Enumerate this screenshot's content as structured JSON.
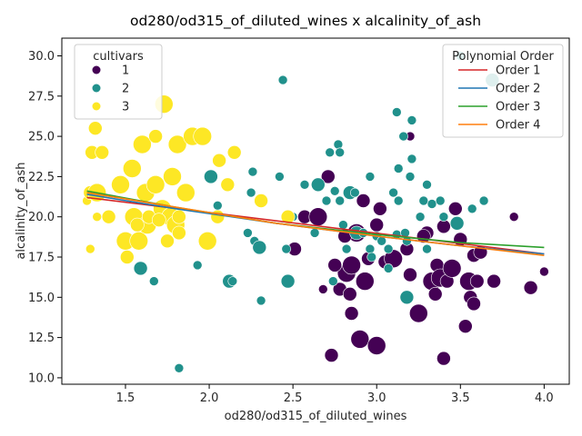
{
  "chart_data": {
    "type": "scatter",
    "title": "od280/od315_of_diluted_wines x alcalinity_of_ash",
    "xlabel": "od280/od315_of_diluted_wines",
    "ylabel": "alcalinity_of_ash",
    "xlim": [
      1.12,
      4.15
    ],
    "ylim": [
      9.6,
      31.1
    ],
    "xticks": [
      "1.5",
      "2.0",
      "2.5",
      "3.0",
      "3.5",
      "4.0"
    ],
    "yticks": [
      "10.0",
      "12.5",
      "15.0",
      "17.5",
      "20.0",
      "22.5",
      "25.0",
      "27.5",
      "30.0"
    ],
    "xtick_values": [
      1.5,
      2.0,
      2.5,
      3.0,
      3.5,
      4.0
    ],
    "ytick_values": [
      10.0,
      12.5,
      15.0,
      17.5,
      20.0,
      22.5,
      25.0,
      27.5,
      30.0
    ],
    "grid": false,
    "size_encoding": "marker size varies by an unlabeled variable (relative 1-3)",
    "hue_legend": {
      "title": "cultivars",
      "placement": "upper-left",
      "entries": [
        {
          "label": "1",
          "color": "#440154"
        },
        {
          "label": "2",
          "color": "#21918c"
        },
        {
          "label": "3",
          "color": "#fde725"
        }
      ]
    },
    "line_legend": {
      "title": "Polynomial Order",
      "placement": "upper-right",
      "entries": [
        {
          "label": "Order 1",
          "color": "#d62728"
        },
        {
          "label": "Order 2",
          "color": "#1f77b4"
        },
        {
          "label": "Order 3",
          "color": "#2ca02c"
        },
        {
          "label": "Order 4",
          "color": "#ff7f0e"
        }
      ]
    },
    "fit_lines": [
      {
        "name": "Order 1",
        "color": "#d62728",
        "x": [
          1.27,
          4.0
        ],
        "y": [
          21.2,
          17.7
        ]
      },
      {
        "name": "Order 2",
        "color": "#1f77b4",
        "x": [
          1.27,
          1.8,
          2.4,
          3.0,
          3.5,
          4.0
        ],
        "y": [
          21.4,
          20.5,
          19.6,
          18.8,
          18.2,
          17.7
        ]
      },
      {
        "name": "Order 3",
        "color": "#2ca02c",
        "x": [
          1.27,
          1.8,
          2.4,
          3.0,
          3.5,
          4.0
        ],
        "y": [
          21.6,
          20.6,
          19.6,
          18.9,
          18.4,
          18.1
        ]
      },
      {
        "name": "Order 4",
        "color": "#ff7f0e",
        "x": [
          1.27,
          1.8,
          2.4,
          3.0,
          3.5,
          4.0
        ],
        "y": [
          21.5,
          20.6,
          19.6,
          18.8,
          18.2,
          17.6
        ]
      }
    ],
    "series": [
      {
        "name": "1",
        "color": "#440154",
        "points": [
          [
            2.51,
            18.0,
            2
          ],
          [
            2.57,
            20.0,
            2
          ],
          [
            2.65,
            20.0,
            3
          ],
          [
            2.71,
            22.5,
            2
          ],
          [
            2.73,
            11.4,
            2
          ],
          [
            2.78,
            15.5,
            2
          ],
          [
            2.82,
            16.5,
            3
          ],
          [
            2.84,
            15.2,
            2
          ],
          [
            2.85,
            14.0,
            2
          ],
          [
            2.85,
            17.0,
            3
          ],
          [
            2.88,
            19.0,
            3
          ],
          [
            2.9,
            12.4,
            3
          ],
          [
            2.92,
            21.0,
            2
          ],
          [
            2.93,
            16.0,
            3
          ],
          [
            2.95,
            17.4,
            2
          ],
          [
            3.0,
            12.0,
            3
          ],
          [
            3.0,
            19.5,
            2
          ],
          [
            3.02,
            20.5,
            2
          ],
          [
            3.05,
            17.2,
            2
          ],
          [
            3.1,
            17.4,
            3
          ],
          [
            3.18,
            18.0,
            2
          ],
          [
            3.2,
            16.4,
            2
          ],
          [
            3.2,
            25.0,
            1
          ],
          [
            3.25,
            14.0,
            3
          ],
          [
            3.3,
            19.0,
            2
          ],
          [
            3.33,
            16.0,
            3
          ],
          [
            3.35,
            15.2,
            2
          ],
          [
            3.36,
            17.0,
            2
          ],
          [
            3.38,
            16.2,
            3
          ],
          [
            3.4,
            11.2,
            2
          ],
          [
            3.4,
            19.4,
            2
          ],
          [
            3.42,
            16.0,
            2
          ],
          [
            3.45,
            16.8,
            3
          ],
          [
            3.47,
            20.5,
            2
          ],
          [
            3.5,
            18.6,
            2
          ],
          [
            3.53,
            13.2,
            2
          ],
          [
            3.55,
            16.0,
            3
          ],
          [
            3.56,
            15.0,
            2
          ],
          [
            3.58,
            14.6,
            2
          ],
          [
            3.58,
            17.6,
            2
          ],
          [
            3.6,
            16.0,
            2
          ],
          [
            3.62,
            17.8,
            2
          ],
          [
            3.7,
            16.0,
            2
          ],
          [
            3.82,
            20.0,
            1
          ],
          [
            3.92,
            15.6,
            2
          ],
          [
            4.0,
            16.6,
            1
          ],
          [
            2.81,
            18.8,
            2
          ],
          [
            2.68,
            15.5,
            1
          ],
          [
            2.75,
            17.0,
            2
          ],
          [
            3.28,
            18.8,
            2
          ]
        ]
      },
      {
        "name": "2",
        "color": "#21918c",
        "points": [
          [
            1.59,
            16.8,
            2
          ],
          [
            1.67,
            16.0,
            1
          ],
          [
            1.82,
            10.6,
            1
          ],
          [
            1.93,
            17.0,
            1
          ],
          [
            2.01,
            22.5,
            2
          ],
          [
            2.05,
            20.7,
            1
          ],
          [
            2.12,
            16.0,
            2
          ],
          [
            2.14,
            16.0,
            1
          ],
          [
            2.23,
            19.0,
            1
          ],
          [
            2.26,
            22.8,
            1
          ],
          [
            2.27,
            18.5,
            1
          ],
          [
            2.3,
            18.1,
            2
          ],
          [
            2.31,
            14.8,
            1
          ],
          [
            2.42,
            22.5,
            1
          ],
          [
            2.44,
            28.5,
            1
          ],
          [
            2.46,
            18.0,
            1
          ],
          [
            2.47,
            16.0,
            2
          ],
          [
            2.5,
            20.0,
            1
          ],
          [
            2.57,
            22.0,
            1
          ],
          [
            2.63,
            19.0,
            1
          ],
          [
            2.65,
            22.0,
            2
          ],
          [
            2.7,
            21.0,
            1
          ],
          [
            2.72,
            24.0,
            1
          ],
          [
            2.74,
            16.0,
            1
          ],
          [
            2.75,
            21.6,
            1
          ],
          [
            2.77,
            24.5,
            1
          ],
          [
            2.78,
            24.0,
            1
          ],
          [
            2.78,
            21.0,
            1
          ],
          [
            2.8,
            19.5,
            1
          ],
          [
            2.82,
            18.0,
            1
          ],
          [
            2.84,
            21.5,
            2
          ],
          [
            2.87,
            21.5,
            1
          ],
          [
            2.88,
            19.0,
            2
          ],
          [
            2.92,
            19.0,
            1
          ],
          [
            2.96,
            22.5,
            1
          ],
          [
            2.96,
            18.0,
            1
          ],
          [
            2.97,
            17.5,
            1
          ],
          [
            3.0,
            18.8,
            1
          ],
          [
            3.03,
            18.5,
            1
          ],
          [
            3.07,
            16.8,
            1
          ],
          [
            3.07,
            18.0,
            1
          ],
          [
            3.1,
            21.5,
            1
          ],
          [
            3.12,
            26.5,
            1
          ],
          [
            3.12,
            18.9,
            1
          ],
          [
            3.13,
            23.0,
            1
          ],
          [
            3.13,
            21.0,
            1
          ],
          [
            3.16,
            25.0,
            1
          ],
          [
            3.17,
            19.0,
            1
          ],
          [
            3.18,
            18.5,
            1
          ],
          [
            3.2,
            22.5,
            1
          ],
          [
            3.21,
            23.6,
            1
          ],
          [
            3.21,
            26.0,
            1
          ],
          [
            3.26,
            20.0,
            1
          ],
          [
            3.28,
            21.0,
            1
          ],
          [
            3.3,
            22.0,
            1
          ],
          [
            3.3,
            18.0,
            1
          ],
          [
            3.33,
            20.8,
            1
          ],
          [
            3.38,
            21.0,
            1
          ],
          [
            3.4,
            20.0,
            1
          ],
          [
            3.48,
            19.6,
            2
          ],
          [
            3.5,
            30.0,
            1
          ],
          [
            3.57,
            20.5,
            1
          ],
          [
            3.64,
            21.0,
            1
          ],
          [
            3.69,
            28.5,
            2
          ],
          [
            3.18,
            15.0,
            2
          ],
          [
            2.25,
            21.5,
            1
          ]
        ]
      },
      {
        "name": "3",
        "color": "#fde725",
        "points": [
          [
            1.27,
            21.0,
            1
          ],
          [
            1.29,
            21.5,
            2
          ],
          [
            1.29,
            18.0,
            1
          ],
          [
            1.3,
            24.0,
            2
          ],
          [
            1.32,
            25.5,
            2
          ],
          [
            1.33,
            20.0,
            1
          ],
          [
            1.33,
            21.5,
            3
          ],
          [
            1.36,
            24.0,
            2
          ],
          [
            1.4,
            20.0,
            2
          ],
          [
            1.47,
            22.0,
            3
          ],
          [
            1.5,
            18.5,
            3
          ],
          [
            1.51,
            17.5,
            2
          ],
          [
            1.54,
            23.0,
            3
          ],
          [
            1.55,
            20.0,
            3
          ],
          [
            1.58,
            18.5,
            3
          ],
          [
            1.6,
            24.5,
            3
          ],
          [
            1.62,
            21.5,
            3
          ],
          [
            1.63,
            19.5,
            3
          ],
          [
            1.64,
            20.0,
            2
          ],
          [
            1.68,
            22.0,
            3
          ],
          [
            1.68,
            25.0,
            2
          ],
          [
            1.72,
            20.5,
            3
          ],
          [
            1.73,
            27.0,
            3
          ],
          [
            1.75,
            18.5,
            2
          ],
          [
            1.77,
            20.0,
            3
          ],
          [
            1.78,
            22.5,
            3
          ],
          [
            1.8,
            19.5,
            3
          ],
          [
            1.81,
            24.5,
            3
          ],
          [
            1.82,
            19.0,
            2
          ],
          [
            1.82,
            20.0,
            2
          ],
          [
            1.86,
            21.5,
            3
          ],
          [
            1.9,
            25.0,
            3
          ],
          [
            1.96,
            25.0,
            3
          ],
          [
            1.99,
            18.5,
            3
          ],
          [
            2.05,
            20.0,
            2
          ],
          [
            2.06,
            23.5,
            2
          ],
          [
            2.11,
            22.0,
            2
          ],
          [
            2.15,
            24.0,
            2
          ],
          [
            2.31,
            21.0,
            2
          ],
          [
            2.47,
            20.0,
            2
          ],
          [
            1.57,
            19.5,
            2
          ],
          [
            1.7,
            19.8,
            2
          ]
        ]
      }
    ]
  }
}
